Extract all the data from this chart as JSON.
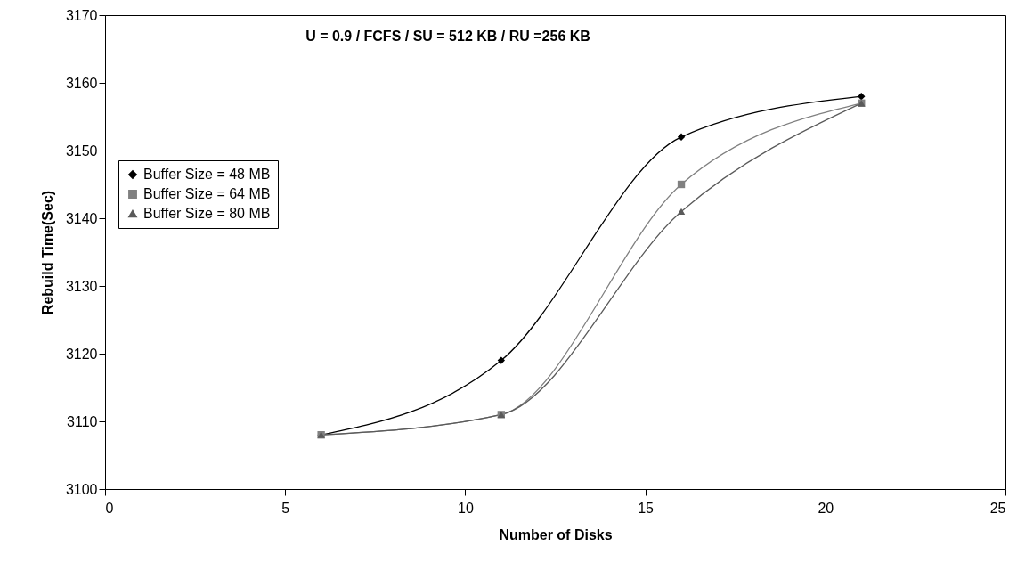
{
  "chart_data": {
    "type": "line",
    "xlabel": "Number of Disks",
    "ylabel": "Rebuild Time(Sec)",
    "annotations": [
      "U = 0.9 / FCFS / SU = 512 KB / RU =256 KB"
    ],
    "x": [
      6,
      11,
      16,
      21
    ],
    "series": [
      {
        "name": "Buffer Size = 48 MB",
        "color": "#000000",
        "marker": "diamond",
        "values": [
          3108,
          3119,
          3152,
          3158
        ]
      },
      {
        "name": "Buffer Size = 64 MB",
        "color": "#808080",
        "marker": "square",
        "values": [
          3108,
          3111,
          3145,
          3157
        ]
      },
      {
        "name": "Buffer Size = 80 MB",
        "color": "#5a5a5a",
        "marker": "triangle",
        "values": [
          3108,
          3111,
          3141,
          3157
        ]
      }
    ],
    "xlim": [
      0,
      25
    ],
    "xticks": [
      0,
      5,
      10,
      15,
      20,
      25
    ],
    "ylim": [
      3100,
      3170
    ],
    "yticks": [
      3100,
      3110,
      3120,
      3130,
      3140,
      3150,
      3160,
      3170
    ],
    "grid": false,
    "legend": "left",
    "line_style": "solid"
  }
}
